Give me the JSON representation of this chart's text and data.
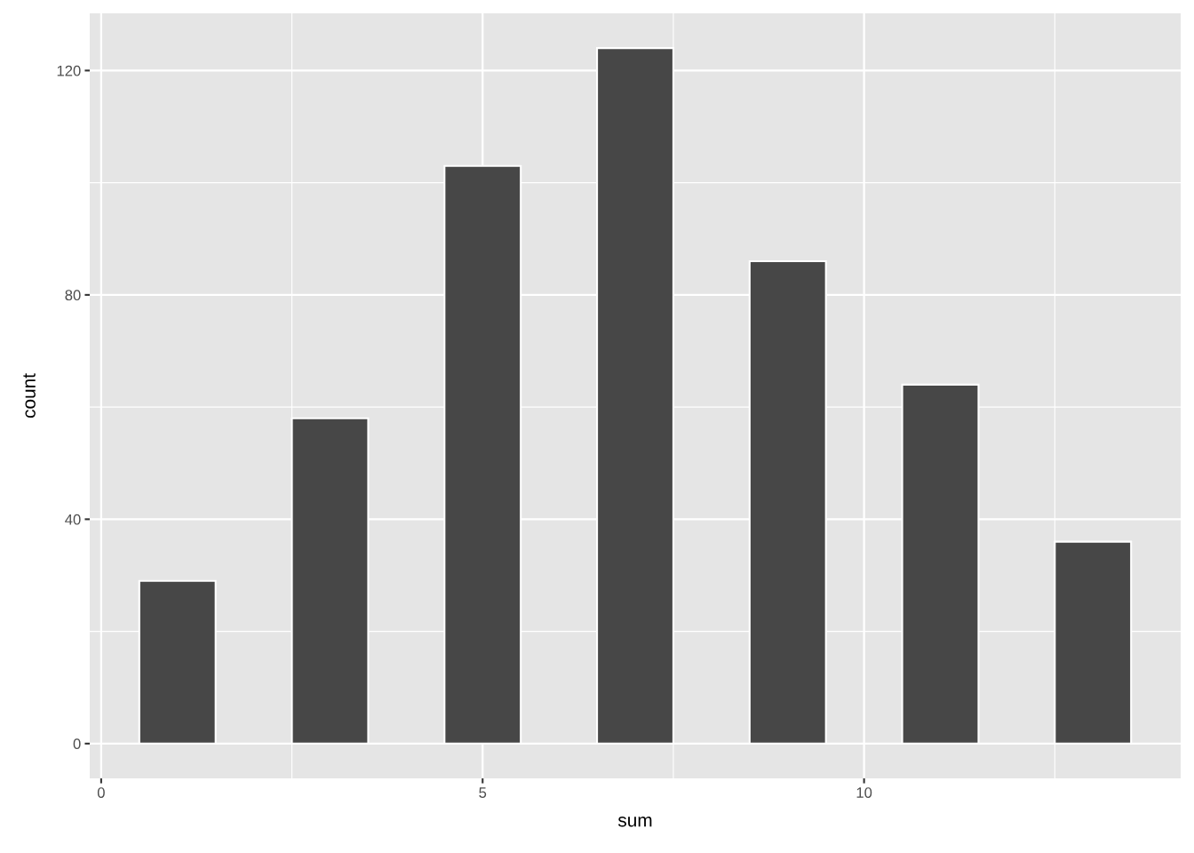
{
  "chart_data": {
    "type": "histogram",
    "xlabel": "sum",
    "ylabel": "count",
    "bins": [
      0.5,
      1.5,
      2.5,
      3.5,
      4.5,
      5.5,
      6.5,
      7.5,
      8.5,
      9.5,
      10.5,
      11.5,
      12.5,
      13.5
    ],
    "values": [
      29,
      0,
      58,
      0,
      103,
      0,
      124,
      0,
      86,
      0,
      64,
      0,
      36
    ],
    "color": "#474747",
    "xlim": [
      -0.15,
      14.15
    ],
    "ylim": [
      -6.2,
      130.2
    ],
    "xticks": [
      0,
      5,
      10
    ],
    "yticks": [
      0,
      40,
      80,
      120
    ],
    "grid": true
  }
}
